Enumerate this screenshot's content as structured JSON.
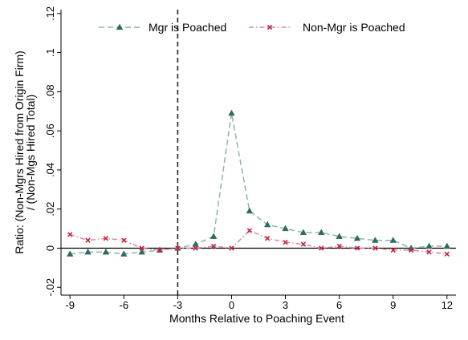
{
  "chart_data": {
    "type": "line",
    "xlabel": "Months Relative to Poaching Event",
    "ylabel_lines": [
      "Ratio: (Non-Mgrs Hired from Origin Firm)",
      "/ (Non-Mgs Hired Total)"
    ],
    "x_ticks": [
      -9,
      -6,
      -3,
      0,
      3,
      6,
      9,
      12
    ],
    "x_tick_labels": [
      "-9",
      "-6",
      "-3",
      "0",
      "3",
      "6",
      "9",
      "12"
    ],
    "y_ticks": [
      -0.02,
      0,
      0.02,
      0.04,
      0.06,
      0.08,
      0.1,
      0.12
    ],
    "y_tick_labels": [
      "-.02",
      "0",
      ".02",
      ".04",
      ".06",
      ".08",
      ".1",
      ".12"
    ],
    "xlim": [
      -9.5,
      12.5
    ],
    "ylim": [
      -0.024,
      0.122
    ],
    "reference_lines": {
      "vertical_x": -3,
      "horizontal_y": 0
    },
    "legend_position": "top",
    "series": [
      {
        "name": "Mgr is Poached",
        "color": "#2e6b62",
        "line_color": "#8db5ad",
        "marker": "triangle",
        "x": [
          -9,
          -8,
          -7,
          -6,
          -5,
          -4,
          -3,
          -2,
          -1,
          0,
          1,
          2,
          3,
          4,
          5,
          6,
          7,
          8,
          9,
          10,
          11,
          12
        ],
        "y": [
          -0.003,
          -0.002,
          -0.002,
          -0.003,
          -0.002,
          -0.001,
          0.0,
          0.002,
          0.006,
          0.069,
          0.019,
          0.012,
          0.01,
          0.008,
          0.008,
          0.006,
          0.005,
          0.004,
          0.004,
          0.0,
          0.001,
          0.001
        ]
      },
      {
        "name": "Non-Mgr is Poached",
        "color": "#c0223f",
        "line_color": "#d98a9a",
        "marker": "x",
        "x": [
          -9,
          -8,
          -7,
          -6,
          -5,
          -4,
          -3,
          -2,
          -1,
          0,
          1,
          2,
          3,
          4,
          5,
          6,
          7,
          8,
          9,
          10,
          11,
          12
        ],
        "y": [
          0.007,
          0.004,
          0.005,
          0.004,
          0.0,
          -0.001,
          0.0,
          0.0,
          0.001,
          0.0,
          0.009,
          0.005,
          0.003,
          0.002,
          0.0,
          0.001,
          0.0,
          0.0,
          -0.001,
          -0.001,
          -0.002,
          -0.003
        ]
      }
    ]
  }
}
